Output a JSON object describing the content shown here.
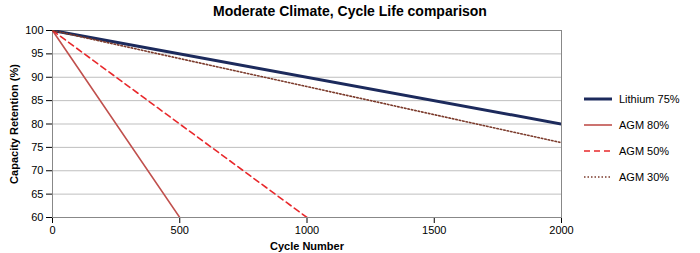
{
  "chart_data": {
    "type": "line",
    "title": "Moderate Climate, Cycle Life comparison",
    "x_label": "Cycle Number",
    "y_label": "Capacity Retention (%)",
    "xlim": [
      0,
      2000
    ],
    "xticks": [
      0,
      500,
      1000,
      1500,
      2000
    ],
    "ylim": [
      60,
      100
    ],
    "yticks": [
      60,
      65,
      70,
      75,
      80,
      85,
      90,
      95,
      100
    ],
    "grid": true,
    "legend": "right",
    "series": [
      {
        "name": "Lithium 75%",
        "color": "#1c2a5c",
        "line_style": "solid",
        "x": [
          0,
          2000
        ],
        "values": [
          100,
          80
        ]
      },
      {
        "name": "AGM 80%",
        "color": "#c0504d",
        "line_style": "solid",
        "x": [
          0,
          500
        ],
        "values": [
          100,
          60
        ]
      },
      {
        "name": "AGM 50%",
        "color": "#e8282b",
        "line_style": "dashed",
        "x": [
          0,
          1000
        ],
        "values": [
          100,
          60
        ]
      },
      {
        "name": "AGM 30%",
        "color": "#7b3a2b",
        "line_style": "dotted",
        "x": [
          0,
          2000
        ],
        "values": [
          100,
          76
        ]
      }
    ]
  }
}
